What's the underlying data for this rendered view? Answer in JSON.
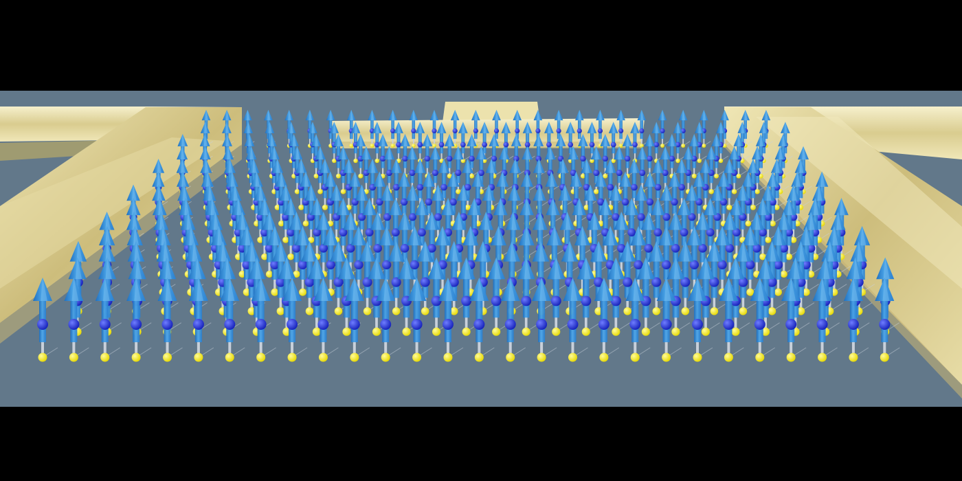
{
  "image": {
    "subject": "spin-lattice-render",
    "colors": {
      "letterbox": "#000000",
      "substrate": "#62788a",
      "gold_light": "#f3ecc0",
      "gold_mid": "#d8ca8c",
      "gold_dark": "#b3a364",
      "arrow": "#2f8fd8",
      "arrow_light": "#7fc0f0",
      "atom_blue": "#1f2fd6",
      "atom_yellow": "#f3ea10",
      "bond": "#c8d0da"
    }
  }
}
